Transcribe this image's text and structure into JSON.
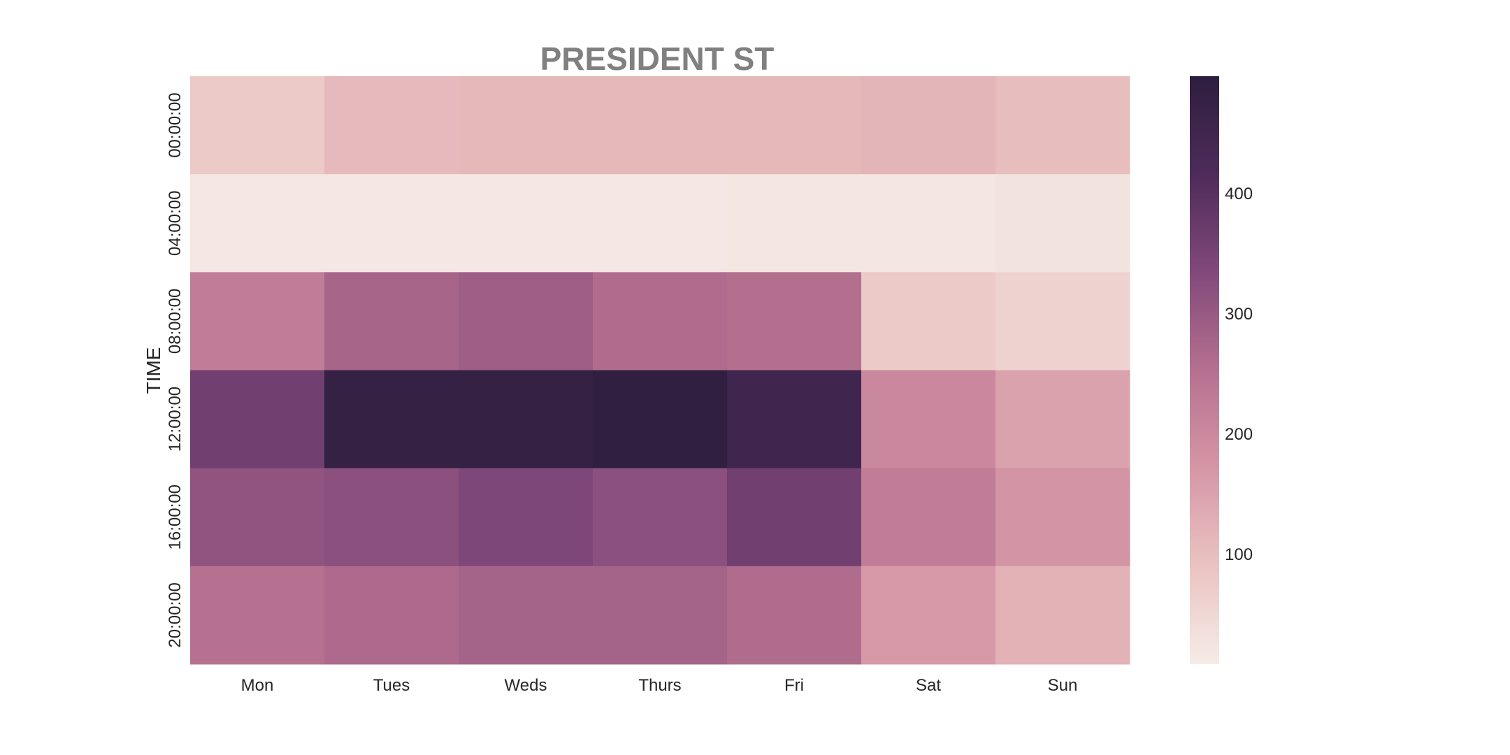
{
  "chart_data": {
    "type": "heatmap",
    "title": "PRESIDENT ST",
    "xlabel": "",
    "ylabel": "TIME",
    "x_categories": [
      "Mon",
      "Tues",
      "Weds",
      "Thurs",
      "Fri",
      "Sat",
      "Sun"
    ],
    "y_categories": [
      "00:00:00",
      "04:00:00",
      "08:00:00",
      "12:00:00",
      "16:00:00",
      "20:00:00"
    ],
    "values": [
      [
        75,
        105,
        110,
        110,
        110,
        115,
        100
      ],
      [
        15,
        15,
        15,
        15,
        20,
        20,
        25
      ],
      [
        225,
        275,
        290,
        260,
        255,
        75,
        60
      ],
      [
        360,
        480,
        480,
        490,
        450,
        200,
        150
      ],
      [
        310,
        320,
        340,
        320,
        360,
        225,
        175
      ],
      [
        250,
        265,
        280,
        280,
        260,
        165,
        120
      ]
    ],
    "colorbar": {
      "range": [
        8,
        497
      ],
      "ticks": [
        "100",
        "200",
        "300",
        "400"
      ],
      "tick_values": [
        100,
        200,
        300,
        400
      ]
    },
    "colormap_stops": [
      "#f6ece7",
      "#eac3c1",
      "#d596a6",
      "#b5708f",
      "#82497b",
      "#4e2b5a",
      "#2d1e3e"
    ],
    "grid": false,
    "legend": "colorbar-right"
  }
}
